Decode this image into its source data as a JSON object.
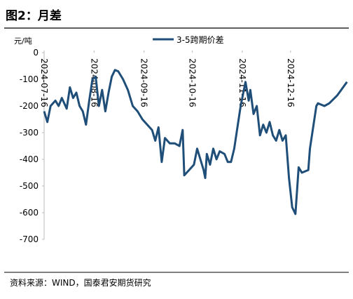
{
  "chart_data": {
    "type": "line",
    "title": "图2：月差",
    "y_label": "元/吨",
    "source": "资料来源：WIND，国泰君安期货研究",
    "legend": "top",
    "x": [
      "2024-07-16",
      "2024-07-18",
      "2024-07-20",
      "2024-07-23",
      "2024-07-25",
      "2024-07-27",
      "2024-07-30",
      "2024-08-01",
      "2024-08-03",
      "2024-08-05",
      "2024-08-07",
      "2024-08-09",
      "2024-08-11",
      "2024-08-13",
      "2024-08-15",
      "2024-08-17",
      "2024-08-19",
      "2024-08-21",
      "2024-08-23",
      "2024-08-25",
      "2024-08-27",
      "2024-08-29",
      "2024-08-31",
      "2024-09-03",
      "2024-09-06",
      "2024-09-09",
      "2024-09-12",
      "2024-09-15",
      "2024-09-18",
      "2024-09-21",
      "2024-09-23",
      "2024-09-25",
      "2024-09-27",
      "2024-09-29",
      "2024-10-02",
      "2024-10-05",
      "2024-10-08",
      "2024-10-10",
      "2024-10-11",
      "2024-10-14",
      "2024-10-17",
      "2024-10-19",
      "2024-10-21",
      "2024-10-23",
      "2024-10-24",
      "2024-10-25",
      "2024-10-27",
      "2024-10-29",
      "2024-10-31",
      "2024-11-02",
      "2024-11-05",
      "2024-11-07",
      "2024-11-09",
      "2024-11-11",
      "2024-11-13",
      "2024-11-15",
      "2024-11-18",
      "2024-11-20",
      "2024-11-21",
      "2024-11-23",
      "2024-11-25",
      "2024-11-27",
      "2024-11-29",
      "2024-12-01",
      "2024-12-03",
      "2024-12-05",
      "2024-12-07",
      "2024-12-09",
      "2024-12-11",
      "2024-12-13",
      "2024-12-15",
      "2024-12-17",
      "2024-12-19",
      "2024-12-21",
      "2024-12-23",
      "2024-12-27",
      "2024-12-28",
      "2025-01-01",
      "2025-01-02",
      "2025-01-06",
      "2025-01-09",
      "2025-01-14",
      "2025-01-20"
    ],
    "series": [
      {
        "name": "3-5跨期价差",
        "color": "#1f4e79",
        "values": [
          -220,
          -260,
          -200,
          -180,
          -200,
          -170,
          -210,
          -130,
          -170,
          -150,
          -200,
          -220,
          -270,
          -180,
          -100,
          -90,
          -200,
          -140,
          -220,
          -150,
          -90,
          -65,
          -70,
          -100,
          -140,
          -200,
          -220,
          -250,
          -270,
          -290,
          -330,
          -280,
          -410,
          -320,
          -340,
          -340,
          -350,
          -290,
          -460,
          -440,
          -420,
          -360,
          -400,
          -440,
          -470,
          -380,
          -420,
          -360,
          -400,
          -370,
          -380,
          -410,
          -410,
          -360,
          -280,
          -200,
          -110,
          -180,
          -140,
          -230,
          -200,
          -310,
          -270,
          -300,
          -260,
          -310,
          -330,
          -290,
          -330,
          -310,
          -470,
          -580,
          -605,
          -430,
          -450,
          -440,
          -360,
          -200,
          -190,
          -200,
          -190,
          -160,
          -110
        ]
      }
    ],
    "xlim": [
      "2024-07-16",
      "2025-01-22"
    ],
    "xticks": [
      "2024-07-16",
      "2024-08-16",
      "2024-09-16",
      "2024-10-16",
      "2024-11-16",
      "2024-12-16"
    ],
    "ylim": [
      -700,
      0
    ],
    "yticks": [
      0,
      -100,
      -200,
      -300,
      -400,
      -500,
      -600,
      -700
    ]
  }
}
